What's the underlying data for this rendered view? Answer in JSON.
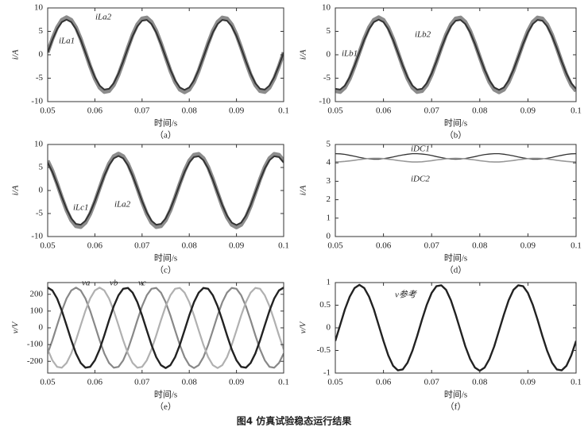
{
  "caption": "图4   仿真试验稳态运行结果",
  "chart_data": [
    {
      "type": "line",
      "panel_label": "（a）",
      "xlabel": "时间/s",
      "ylabel": "i/A",
      "xlim": [
        0.05,
        0.1
      ],
      "xticks": [
        0.05,
        0.06,
        0.07,
        0.08,
        0.09,
        0.1
      ],
      "ylim": [
        -10,
        10
      ],
      "yticks": [
        10,
        5,
        0,
        -5,
        -10
      ],
      "x": [
        0.05,
        0.051,
        0.052,
        0.053,
        0.054,
        0.055,
        0.056,
        0.057,
        0.058,
        0.059,
        0.06,
        0.061,
        0.062,
        0.063,
        0.064,
        0.065,
        0.066,
        0.067,
        0.068,
        0.069,
        0.07,
        0.071,
        0.072,
        0.073,
        0.074,
        0.075,
        0.076,
        0.077,
        0.078,
        0.079,
        0.08,
        0.081,
        0.082,
        0.083,
        0.084,
        0.085,
        0.086,
        0.087,
        0.088,
        0.089,
        0.09,
        0.091,
        0.092,
        0.093,
        0.094,
        0.095,
        0.096,
        0.097,
        0.098,
        0.099,
        0.1
      ],
      "series": [
        {
          "name": "iLa2",
          "color": "#8c8c8c",
          "values": [
            0.5,
            3.41,
            5.83,
            7.44,
            8,
            7.44,
            5.83,
            3.41,
            0.5,
            -2.47,
            -5.1,
            -7.01,
            -7.94,
            -7.75,
            -6.47,
            -4.29,
            -1.5,
            1.5,
            4.29,
            6.47,
            7.75,
            7.94,
            7.01,
            5.1,
            2.47,
            -0.5,
            -3.41,
            -5.83,
            -7.44,
            -8,
            -7.44,
            -5.83,
            -3.41,
            -0.5,
            2.47,
            5.1,
            7.01,
            7.94,
            7.75,
            6.47,
            4.29,
            1.5,
            -1.5,
            -4.29,
            -6.47,
            -7.75,
            -7.94,
            -7.01,
            -5.1,
            -2.47,
            0.5
          ]
        },
        {
          "name": "iLa1",
          "color": "#333333",
          "values": [
            0.47,
            3.2,
            5.47,
            6.98,
            7.5,
            6.98,
            5.47,
            3.2,
            0.47,
            -2.32,
            -4.78,
            -6.57,
            -7.44,
            -7.27,
            -6.07,
            -4.02,
            -1.41,
            1.41,
            4.02,
            6.07,
            7.27,
            7.44,
            6.57,
            4.78,
            2.32,
            -0.47,
            -3.2,
            -5.47,
            -6.98,
            -7.5,
            -6.98,
            -5.47,
            -3.2,
            -0.47,
            2.32,
            4.78,
            6.57,
            7.44,
            7.27,
            6.07,
            4.02,
            1.41,
            -1.41,
            -4.02,
            -6.07,
            -7.27,
            -7.44,
            -6.57,
            -4.78,
            -2.32,
            0.47
          ]
        }
      ]
    },
    {
      "type": "line",
      "panel_label": "（b）",
      "xlabel": "时间/s",
      "ylabel": "i/A",
      "xlim": [
        0.05,
        0.1
      ],
      "xticks": [
        0.05,
        0.06,
        0.07,
        0.08,
        0.09,
        0.1
      ],
      "ylim": [
        -10,
        10
      ],
      "yticks": [
        10,
        5,
        0,
        -5,
        -10
      ],
      "x": [
        0.05,
        0.051,
        0.052,
        0.053,
        0.054,
        0.055,
        0.056,
        0.057,
        0.058,
        0.059,
        0.06,
        0.061,
        0.062,
        0.063,
        0.064,
        0.065,
        0.066,
        0.067,
        0.068,
        0.069,
        0.07,
        0.071,
        0.072,
        0.073,
        0.074,
        0.075,
        0.076,
        0.077,
        0.078,
        0.079,
        0.08,
        0.081,
        0.082,
        0.083,
        0.084,
        0.085,
        0.086,
        0.087,
        0.088,
        0.089,
        0.09,
        0.091,
        0.092,
        0.093,
        0.094,
        0.095,
        0.096,
        0.097,
        0.098,
        0.099,
        0.1
      ],
      "series": [
        {
          "name": "iLb2",
          "color": "#8c8c8c",
          "values": [
            -7.75,
            -7.94,
            -7.01,
            -5.1,
            -2.47,
            0.5,
            3.41,
            5.83,
            7.44,
            8,
            7.44,
            5.83,
            3.41,
            0.5,
            -2.47,
            -5.1,
            -7.01,
            -7.94,
            -7.75,
            -6.47,
            -4.29,
            -1.5,
            1.5,
            4.29,
            6.47,
            7.75,
            7.94,
            7.01,
            5.1,
            2.47,
            -0.5,
            -3.41,
            -5.83,
            -7.44,
            -8,
            -7.44,
            -5.83,
            -3.41,
            -0.5,
            2.47,
            5.1,
            7.01,
            7.94,
            7.75,
            6.47,
            4.29,
            1.5,
            -1.5,
            -4.29,
            -6.47,
            -7.75
          ]
        },
        {
          "name": "iLb1",
          "color": "#333333",
          "values": [
            -7.27,
            -7.44,
            -6.57,
            -4.78,
            -2.32,
            0.47,
            3.2,
            5.47,
            6.98,
            7.5,
            6.98,
            5.47,
            3.2,
            0.47,
            -2.32,
            -4.78,
            -6.57,
            -7.44,
            -7.27,
            -6.07,
            -4.02,
            -1.41,
            1.41,
            4.02,
            6.07,
            7.27,
            7.44,
            6.57,
            4.78,
            2.32,
            -0.47,
            -3.2,
            -5.47,
            -6.98,
            -7.5,
            -6.98,
            -5.47,
            -3.2,
            -0.47,
            2.32,
            4.78,
            6.57,
            7.44,
            7.27,
            6.07,
            4.02,
            1.41,
            -1.41,
            -4.02,
            -6.07,
            -7.27
          ]
        }
      ]
    },
    {
      "type": "line",
      "panel_label": "（c）",
      "xlabel": "时间/s",
      "ylabel": "i/A",
      "xlim": [
        0.05,
        0.1
      ],
      "xticks": [
        0.05,
        0.06,
        0.07,
        0.08,
        0.09,
        0.1
      ],
      "ylim": [
        -10,
        10
      ],
      "yticks": [
        10,
        5,
        0,
        -5,
        -10
      ],
      "x": [
        0.05,
        0.051,
        0.052,
        0.053,
        0.054,
        0.055,
        0.056,
        0.057,
        0.058,
        0.059,
        0.06,
        0.061,
        0.062,
        0.063,
        0.064,
        0.065,
        0.066,
        0.067,
        0.068,
        0.069,
        0.07,
        0.071,
        0.072,
        0.073,
        0.074,
        0.075,
        0.076,
        0.077,
        0.078,
        0.079,
        0.08,
        0.081,
        0.082,
        0.083,
        0.084,
        0.085,
        0.086,
        0.087,
        0.088,
        0.089,
        0.09,
        0.091,
        0.092,
        0.093,
        0.094,
        0.095,
        0.096,
        0.097,
        0.098,
        0.099,
        0.1
      ],
      "series": [
        {
          "name": "iLa2",
          "color": "#8c8c8c",
          "values": [
            6.47,
            4.29,
            1.5,
            -1.5,
            -4.29,
            -6.47,
            -7.75,
            -7.94,
            -7.01,
            -5.1,
            -2.47,
            0.5,
            3.41,
            5.83,
            7.44,
            8,
            7.44,
            5.83,
            3.41,
            0.5,
            -2.47,
            -5.1,
            -7.01,
            -7.94,
            -7.75,
            -6.47,
            -4.29,
            -1.5,
            1.5,
            4.29,
            6.47,
            7.75,
            7.94,
            7.01,
            5.1,
            2.47,
            -0.5,
            -3.41,
            -5.83,
            -7.44,
            -8,
            -7.44,
            -5.83,
            -3.41,
            -0.5,
            2.47,
            5.1,
            7.01,
            7.94,
            7.75,
            6.47
          ]
        },
        {
          "name": "iLc1",
          "color": "#333333",
          "values": [
            6.07,
            4.02,
            1.41,
            -1.41,
            -4.02,
            -6.07,
            -7.27,
            -7.44,
            -6.57,
            -4.78,
            -2.32,
            0.47,
            3.2,
            5.47,
            6.98,
            7.5,
            6.98,
            5.47,
            3.2,
            0.47,
            -2.32,
            -4.78,
            -6.57,
            -7.44,
            -7.27,
            -6.07,
            -4.02,
            -1.41,
            1.41,
            4.02,
            6.07,
            7.27,
            7.44,
            6.57,
            4.78,
            2.32,
            -0.47,
            -3.2,
            -5.47,
            -6.98,
            -7.5,
            -6.98,
            -5.47,
            -3.2,
            -0.47,
            2.32,
            4.78,
            6.57,
            7.44,
            7.27,
            6.07
          ]
        }
      ]
    },
    {
      "type": "line",
      "panel_label": "（d）",
      "xlabel": "时间/s",
      "ylabel": "i/A",
      "xlim": [
        0.05,
        0.1
      ],
      "xticks": [
        0.05,
        0.06,
        0.07,
        0.08,
        0.09,
        0.1
      ],
      "ylim": [
        0,
        5
      ],
      "yticks": [
        5,
        4,
        3,
        2,
        1,
        0
      ],
      "x": [
        0.05,
        0.051,
        0.052,
        0.053,
        0.054,
        0.055,
        0.056,
        0.057,
        0.058,
        0.059,
        0.06,
        0.061,
        0.062,
        0.063,
        0.064,
        0.065,
        0.066,
        0.067,
        0.068,
        0.069,
        0.07,
        0.071,
        0.072,
        0.073,
        0.074,
        0.075,
        0.076,
        0.077,
        0.078,
        0.079,
        0.08,
        0.081,
        0.082,
        0.083,
        0.084,
        0.085,
        0.086,
        0.087,
        0.088,
        0.089,
        0.09,
        0.091,
        0.092,
        0.093,
        0.094,
        0.095,
        0.096,
        0.097,
        0.098,
        0.099,
        0.1
      ],
      "series": [
        {
          "name": "iDC1",
          "color": "#333333",
          "values": [
            4.5,
            4.49,
            4.46,
            4.41,
            4.36,
            4.3,
            4.25,
            4.22,
            4.2,
            4.2,
            4.23,
            4.27,
            4.32,
            4.38,
            4.43,
            4.47,
            4.5,
            4.5,
            4.48,
            4.45,
            4.4,
            4.34,
            4.29,
            4.24,
            4.21,
            4.2,
            4.21,
            4.24,
            4.29,
            4.34,
            4.4,
            4.45,
            4.48,
            4.5,
            4.5,
            4.47,
            4.43,
            4.38,
            4.32,
            4.27,
            4.23,
            4.2,
            4.2,
            4.22,
            4.25,
            4.3,
            4.36,
            4.41,
            4.46,
            4.49,
            4.5
          ]
        },
        {
          "name": "iDC2",
          "color": "#999999",
          "values": [
            4.05,
            4.06,
            4.08,
            4.11,
            4.14,
            4.18,
            4.21,
            4.24,
            4.25,
            4.25,
            4.23,
            4.2,
            4.17,
            4.13,
            4.1,
            4.07,
            4.05,
            4.05,
            4.06,
            4.09,
            4.12,
            4.16,
            4.19,
            4.22,
            4.24,
            4.25,
            4.24,
            4.22,
            4.19,
            4.16,
            4.12,
            4.09,
            4.06,
            4.05,
            4.05,
            4.07,
            4.1,
            4.13,
            4.17,
            4.2,
            4.23,
            4.25,
            4.25,
            4.24,
            4.21,
            4.18,
            4.14,
            4.11,
            4.08,
            4.06,
            4.05
          ]
        }
      ]
    },
    {
      "type": "line",
      "panel_label": "（e）",
      "xlabel": "时间/s",
      "ylabel": "v/V",
      "xlim": [
        0.05,
        0.1
      ],
      "xticks": [
        0.05,
        0.06,
        0.07,
        0.08,
        0.09,
        0.1
      ],
      "ylim": [
        -270,
        270
      ],
      "yticks": [
        200,
        100,
        0,
        -100,
        -200
      ],
      "x": [
        0.05,
        0.051,
        0.052,
        0.053,
        0.054,
        0.055,
        0.056,
        0.057,
        0.058,
        0.059,
        0.06,
        0.061,
        0.062,
        0.063,
        0.064,
        0.065,
        0.066,
        0.067,
        0.068,
        0.069,
        0.07,
        0.071,
        0.072,
        0.073,
        0.074,
        0.075,
        0.076,
        0.077,
        0.078,
        0.079,
        0.08,
        0.081,
        0.082,
        0.083,
        0.084,
        0.085,
        0.086,
        0.087,
        0.088,
        0.089,
        0.09,
        0.091,
        0.092,
        0.093,
        0.094,
        0.095,
        0.096,
        0.097,
        0.098,
        0.099,
        0.1
      ],
      "series": [
        {
          "name": "va",
          "color": "#888888",
          "values": [
            -153,
            -74,
            15,
            102,
            175,
            223,
            240,
            223,
            175,
            102,
            15,
            -74,
            -153,
            -210,
            -238,
            -233,
            -194,
            -129,
            -45,
            45,
            129,
            194,
            233,
            238,
            210,
            153,
            74,
            -15,
            -102,
            -175,
            -223,
            -240,
            -223,
            -175,
            -102,
            -15,
            74,
            153,
            210,
            238,
            233,
            194,
            129,
            45,
            -45,
            -129,
            -194,
            -233,
            -238,
            -210,
            -153
          ]
        },
        {
          "name": "vb",
          "color": "#b0b0b0",
          "values": [
            -129,
            -194,
            -233,
            -238,
            -210,
            -153,
            -74,
            15,
            102,
            175,
            223,
            240,
            223,
            175,
            102,
            15,
            -74,
            -153,
            -210,
            -238,
            -233,
            -194,
            -129,
            -45,
            45,
            129,
            194,
            233,
            238,
            210,
            153,
            74,
            -15,
            -102,
            -175,
            -223,
            -240,
            -223,
            -175,
            -102,
            -15,
            74,
            153,
            210,
            238,
            233,
            194,
            129,
            45,
            -45,
            -129
          ]
        },
        {
          "name": "vc",
          "color": "#222222",
          "values": [
            240,
            223,
            175,
            102,
            15,
            -74,
            -153,
            -210,
            -238,
            -233,
            -194,
            -129,
            -45,
            45,
            129,
            194,
            233,
            238,
            210,
            153,
            74,
            -15,
            -102,
            -175,
            -223,
            -240,
            -223,
            -175,
            -102,
            -15,
            74,
            153,
            210,
            238,
            233,
            194,
            129,
            45,
            -45,
            -129,
            -194,
            -233,
            -238,
            -210,
            -153,
            -74,
            15,
            102,
            175,
            223,
            240
          ]
        }
      ]
    },
    {
      "type": "line",
      "panel_label": "（f）",
      "xlabel": "时间/s",
      "ylabel": "v/V",
      "xlim": [
        0.05,
        0.1
      ],
      "xticks": [
        0.05,
        0.06,
        0.07,
        0.08,
        0.09,
        0.1
      ],
      "ylim": [
        -1,
        1
      ],
      "yticks": [
        1,
        0.5,
        0,
        -0.5,
        -1
      ],
      "x": [
        0.05,
        0.051,
        0.052,
        0.053,
        0.054,
        0.055,
        0.056,
        0.057,
        0.058,
        0.059,
        0.06,
        0.061,
        0.062,
        0.063,
        0.064,
        0.065,
        0.066,
        0.067,
        0.068,
        0.069,
        0.07,
        0.071,
        0.072,
        0.073,
        0.074,
        0.075,
        0.076,
        0.077,
        0.078,
        0.079,
        0.08,
        0.081,
        0.082,
        0.083,
        0.084,
        0.085,
        0.086,
        0.087,
        0.088,
        0.089,
        0.09,
        0.091,
        0.092,
        0.093,
        0.094,
        0.095,
        0.096,
        0.097,
        0.098,
        0.099,
        0.1
      ],
      "series": [
        {
          "name": "v参考",
          "color": "#222222",
          "values": [
            -0.29,
            0.06,
            0.41,
            0.69,
            0.88,
            0.95,
            0.88,
            0.69,
            0.41,
            0.06,
            -0.29,
            -0.61,
            -0.84,
            -0.94,
            -0.92,
            -0.77,
            -0.51,
            -0.18,
            0.18,
            0.51,
            0.77,
            0.92,
            0.94,
            0.84,
            0.61,
            0.29,
            -0.06,
            -0.41,
            -0.69,
            -0.88,
            -0.95,
            -0.88,
            -0.69,
            -0.41,
            -0.06,
            0.29,
            0.61,
            0.84,
            0.94,
            0.92,
            0.77,
            0.51,
            0.18,
            -0.18,
            -0.51,
            -0.77,
            -0.92,
            -0.94,
            -0.84,
            -0.61,
            -0.29
          ]
        }
      ]
    }
  ]
}
